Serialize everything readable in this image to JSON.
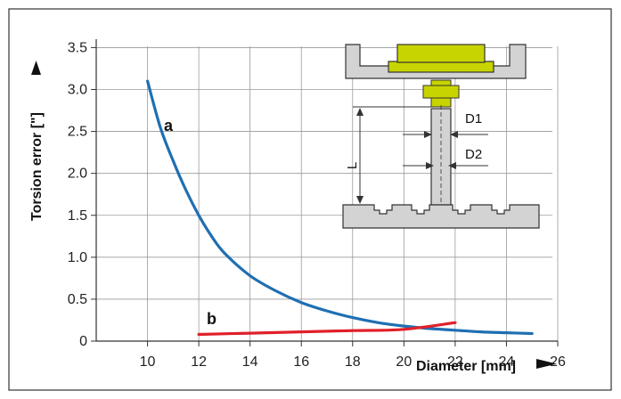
{
  "chart_data": {
    "type": "line",
    "xlabel": "Diameter [mm]",
    "ylabel": "Torsion error [\"]",
    "xlim": [
      8,
      26
    ],
    "ylim": [
      0,
      3.6
    ],
    "x_ticks": [
      10,
      12,
      14,
      16,
      18,
      20,
      22,
      24,
      26
    ],
    "x_tick_labels": [
      "10",
      "12",
      "14",
      "16",
      "18",
      "20",
      "22",
      "24",
      "26"
    ],
    "y_ticks": [
      0,
      0.5,
      1.0,
      1.5,
      2.0,
      2.5,
      3.0,
      3.5
    ],
    "y_tick_labels": [
      "0",
      "0.5",
      "1.0",
      "1.5",
      "2.0",
      "2.5",
      "3.0",
      "3.5"
    ],
    "grid": true,
    "series": [
      {
        "name": "a",
        "color": "#1f6fb2",
        "x": [
          10,
          10.5,
          11,
          11.5,
          12,
          12.5,
          13,
          14,
          15,
          16,
          17,
          18,
          19,
          20,
          21,
          22,
          23,
          24,
          25
        ],
        "y": [
          3.1,
          2.55,
          2.15,
          1.8,
          1.5,
          1.25,
          1.05,
          0.78,
          0.6,
          0.46,
          0.36,
          0.28,
          0.22,
          0.18,
          0.15,
          0.13,
          0.11,
          0.1,
          0.09
        ]
      },
      {
        "name": "b",
        "color": "#e0202a",
        "x": [
          12,
          14,
          16,
          18,
          20,
          22
        ],
        "y": [
          0.08,
          0.095,
          0.11,
          0.125,
          0.14,
          0.22
        ]
      }
    ]
  },
  "diagram": {
    "dimension_length": "L",
    "dimension_d1": "D1",
    "dimension_d2": "D2",
    "colors": {
      "component": "#c8d400",
      "body": "#d3d3d3"
    }
  }
}
